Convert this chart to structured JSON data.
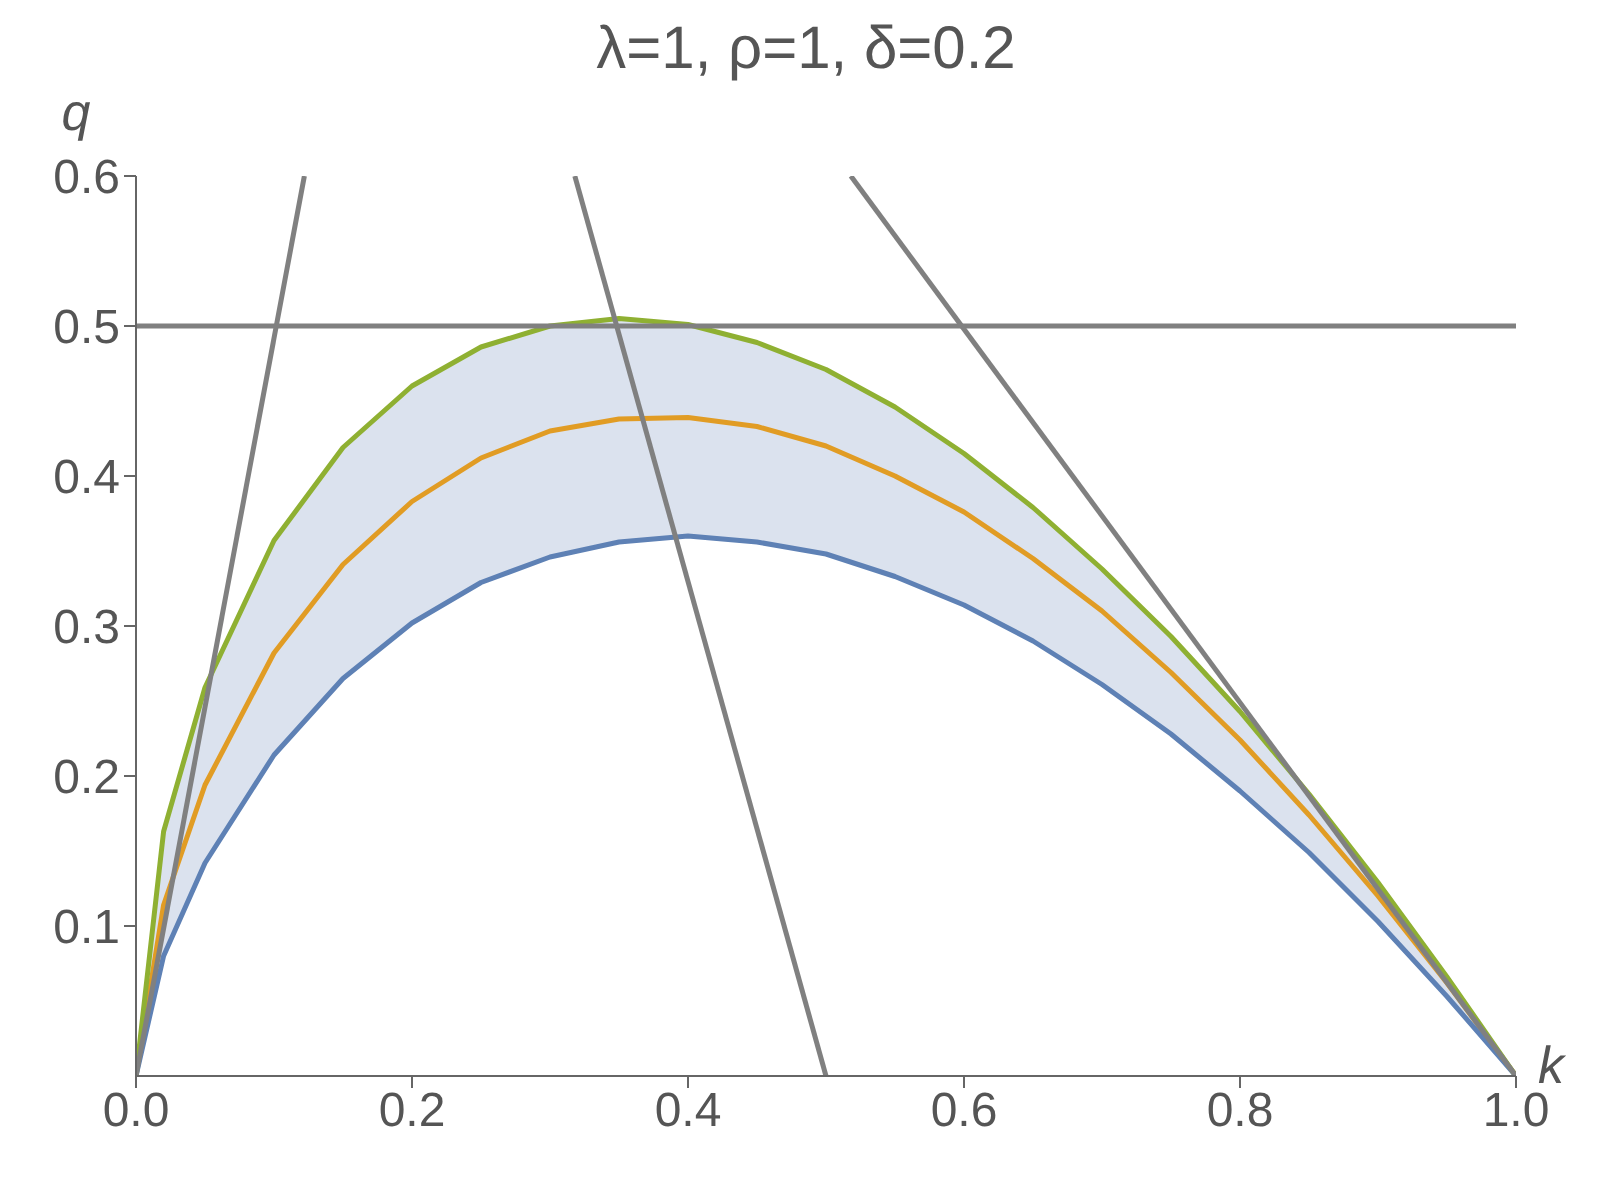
{
  "chart_data": {
    "type": "line",
    "title": "λ=1, ρ=1, δ=0.2",
    "xlabel": "k",
    "ylabel": "q",
    "x": [
      0,
      0.02,
      0.05,
      0.1,
      0.15,
      0.2,
      0.25,
      0.3,
      0.35,
      0.4,
      0.45,
      0.5,
      0.55,
      0.6,
      0.65,
      0.7,
      0.75,
      0.8,
      0.85,
      0.9,
      0.95,
      1
    ],
    "series": [
      {
        "color": "#5e81b5",
        "values": [
          0,
          0.08,
          0.142,
          0.214,
          0.265,
          0.302,
          0.329,
          0.346,
          0.356,
          0.36,
          0.356,
          0.348,
          0.333,
          0.314,
          0.29,
          0.261,
          0.228,
          0.19,
          0.149,
          0.103,
          0.053,
          0
        ]
      },
      {
        "color": "#e19c24",
        "values": [
          0,
          0.114,
          0.194,
          0.282,
          0.341,
          0.383,
          0.412,
          0.43,
          0.438,
          0.439,
          0.433,
          0.42,
          0.4,
          0.376,
          0.345,
          0.31,
          0.269,
          0.224,
          0.174,
          0.12,
          0.062,
          0
        ],
        "lower": [
          0,
          0.08,
          0.142,
          0.214,
          0.265,
          0.302,
          0.329,
          0.346,
          0.356,
          0.36,
          0.356,
          0.348,
          0.333,
          0.314,
          0.29,
          0.261,
          0.228,
          0.19,
          0.149,
          0.103,
          0.053,
          0
        ],
        "upper": [
          0,
          0.163,
          0.259,
          0.357,
          0.419,
          0.46,
          0.486,
          0.5,
          0.505,
          0.501,
          0.489,
          0.471,
          0.446,
          0.415,
          0.379,
          0.338,
          0.293,
          0.243,
          0.188,
          0.129,
          0.066,
          0
        ]
      },
      {
        "color": "#8fb032",
        "values": [
          0,
          0.163,
          0.259,
          0.357,
          0.419,
          0.46,
          0.486,
          0.5,
          0.505,
          0.501,
          0.489,
          0.471,
          0.446,
          0.415,
          0.379,
          0.338,
          0.293,
          0.243,
          0.188,
          0.129,
          0.066,
          0
        ]
      },
      {
        "color": "#808080",
        "x": [
          0,
          0.122
        ],
        "values": [
          0,
          0.6
        ]
      },
      {
        "color": "#808080",
        "x": [
          0.318,
          0.5
        ],
        "values": [
          0.6,
          0
        ]
      },
      {
        "color": "#808080",
        "x": [
          0.518,
          1
        ],
        "values": [
          0.6,
          0
        ]
      }
    ],
    "ref_lines": [
      {
        "axis": "y",
        "value": 0.5,
        "color": "#808080"
      }
    ],
    "xlim": [
      0,
      1
    ],
    "ylim": [
      0,
      0.6
    ],
    "xticks": [
      {
        "value": 0,
        "label": "0.0"
      },
      0.2,
      0.4,
      0.6,
      0.8,
      {
        "value": 1,
        "label": "1.0"
      }
    ],
    "yticks": [
      0.1,
      0.2,
      0.3,
      0.4,
      0.5,
      0.6
    ]
  }
}
